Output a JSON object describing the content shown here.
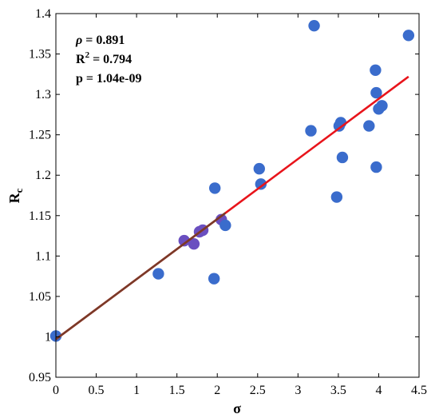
{
  "chart_data": {
    "type": "scatter",
    "xlabel": "σ",
    "ylabel": "R",
    "ylabel_sub": "c",
    "xlim": [
      0,
      4.5
    ],
    "ylim": [
      0.95,
      1.4
    ],
    "xticks": [
      0,
      0.5,
      1,
      1.5,
      2,
      2.5,
      3,
      3.5,
      4,
      4.5
    ],
    "xtick_labels": [
      "0",
      "0.5",
      "1",
      "1.5",
      "2",
      "2.5",
      "3",
      "3.5",
      "4",
      "4.5"
    ],
    "yticks": [
      0.95,
      1.0,
      1.05,
      1.1,
      1.15,
      1.2,
      1.25,
      1.3,
      1.35,
      1.4
    ],
    "ytick_labels": [
      "0.95",
      "1",
      "1.05",
      "1.1",
      "1.15",
      "1.2",
      "1.25",
      "1.3",
      "1.35",
      "1.4"
    ],
    "grid": false,
    "stats": {
      "rho_symbol": "ρ",
      "rho_value": " = 0.891",
      "r2_base": "R",
      "r2_sup": "2",
      "r2_value": " = 0.794",
      "p_text": "p = 1.04e-09"
    },
    "point_color": "#3a6ccc",
    "overlap_color": "#6a4fc0",
    "fit_color": "#e8141b",
    "fit_overlap_color": "#7a3a28",
    "fit_line": {
      "x": [
        0,
        4.37
      ],
      "y": [
        0.997,
        1.322
      ]
    },
    "fit_overlap_until_x": 2.1,
    "points": [
      {
        "x": 0.0,
        "y": 1.001
      },
      {
        "x": 1.27,
        "y": 1.078
      },
      {
        "x": 1.59,
        "y": 1.119
      },
      {
        "x": 1.71,
        "y": 1.115
      },
      {
        "x": 1.78,
        "y": 1.13
      },
      {
        "x": 1.82,
        "y": 1.132
      },
      {
        "x": 1.96,
        "y": 1.072
      },
      {
        "x": 1.97,
        "y": 1.184
      },
      {
        "x": 2.05,
        "y": 1.145
      },
      {
        "x": 2.1,
        "y": 1.138
      },
      {
        "x": 2.52,
        "y": 1.208
      },
      {
        "x": 2.54,
        "y": 1.189
      },
      {
        "x": 3.16,
        "y": 1.255
      },
      {
        "x": 3.2,
        "y": 1.385
      },
      {
        "x": 3.48,
        "y": 1.173
      },
      {
        "x": 3.51,
        "y": 1.261
      },
      {
        "x": 3.53,
        "y": 1.265
      },
      {
        "x": 3.55,
        "y": 1.222
      },
      {
        "x": 3.88,
        "y": 1.261
      },
      {
        "x": 3.96,
        "y": 1.33
      },
      {
        "x": 3.97,
        "y": 1.21
      },
      {
        "x": 3.97,
        "y": 1.302
      },
      {
        "x": 4.0,
        "y": 1.282
      },
      {
        "x": 4.04,
        "y": 1.286
      },
      {
        "x": 4.37,
        "y": 1.373
      }
    ]
  }
}
